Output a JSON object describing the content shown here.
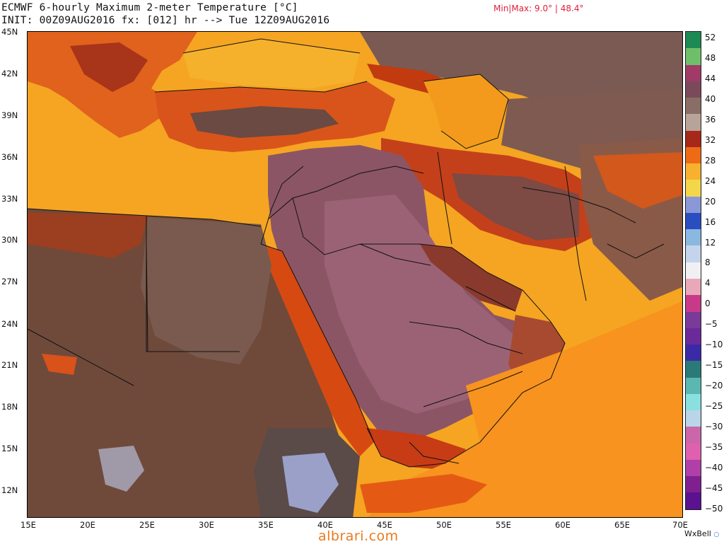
{
  "header": {
    "line1": "ECMWF 6-hourly Maximum 2-meter Temperature [°C]",
    "line2": "INIT: 00Z09AUG2016 fx: [012] hr --> Tue 12Z09AUG2016",
    "minmax": "Min|Max: 9.0° | 48.4°"
  },
  "map": {
    "lat_labels": [
      "45N",
      "42N",
      "39N",
      "36N",
      "33N",
      "30N",
      "27N",
      "24N",
      "21N",
      "18N",
      "15N",
      "12N"
    ],
    "lon_labels": [
      "15E",
      "20E",
      "25E",
      "30E",
      "35E",
      "40E",
      "45E",
      "50E",
      "55E",
      "60E",
      "65E",
      "70E"
    ],
    "regions": [
      {
        "name": "sea-mediterranean",
        "color": "#f4a21e"
      },
      {
        "name": "sea-black",
        "color": "#f6b12c"
      },
      {
        "name": "sea-caspian",
        "color": "#f39a1c"
      },
      {
        "name": "sea-arabian",
        "color": "#f7931e"
      },
      {
        "name": "sahara",
        "color": "#6f4a3b"
      },
      {
        "name": "arabia",
        "color": "#8c5565"
      },
      {
        "name": "iran-plateau",
        "color": "#7d4a44"
      },
      {
        "name": "red-sea-coast",
        "color": "#d64a12"
      },
      {
        "name": "mountains",
        "color": "#c43a10"
      }
    ]
  },
  "colorbar": {
    "labels": [
      "52",
      "48",
      "44",
      "40",
      "36",
      "32",
      "28",
      "24",
      "20",
      "16",
      "12",
      "8",
      "4",
      "0",
      "−5",
      "−10",
      "−15",
      "−20",
      "−25",
      "−30",
      "−35",
      "−40",
      "−45",
      "−50"
    ],
    "colors": [
      "#1d8a55",
      "#6fbf6a",
      "#a23a68",
      "#7a4a5b",
      "#8a6e66",
      "#b8a39a",
      "#a62818",
      "#ee6a14",
      "#f7b12e",
      "#f4d64a",
      "#8a98d8",
      "#2a4ec0",
      "#8ab8e0",
      "#c4d4ec",
      "#f0f0f4",
      "#e8a8b8",
      "#c83a88",
      "#7a3a9a",
      "#6a2a9a",
      "#3a2aa8",
      "#2a7a7a",
      "#5ab8b0",
      "#8ae0e0",
      "#b8d6e8",
      "#cc66aa",
      "#e060b0",
      "#b040a8",
      "#802090",
      "#5a1290"
    ]
  },
  "footer": {
    "credit": "WxBell",
    "watermark": "albrari.com"
  }
}
